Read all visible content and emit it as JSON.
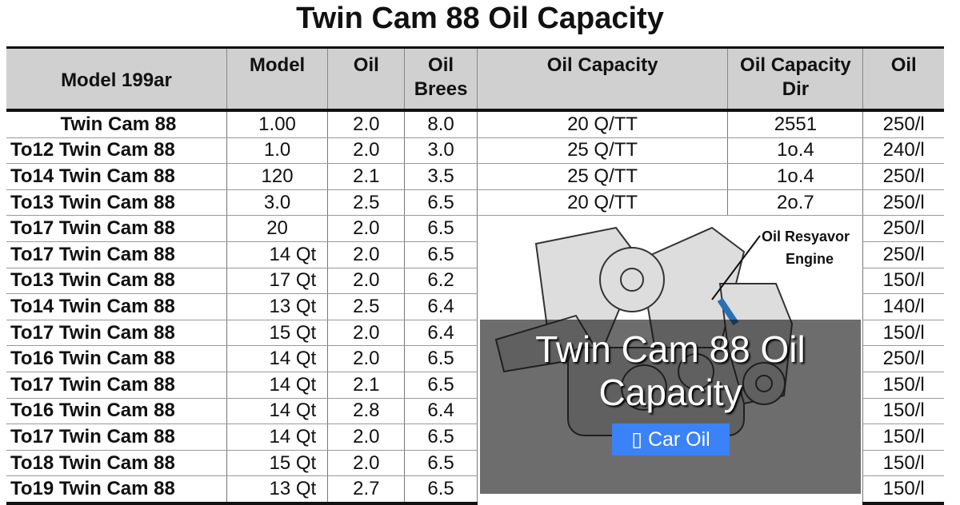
{
  "title": "Twin Cam 88 Oil Capacity",
  "headers": [
    "Model 199ar",
    "Model",
    "Oil",
    "Oil Brees",
    "Oil Capacity",
    "Oil Capacity Dir",
    "Oil"
  ],
  "rows": [
    [
      "Twin Cam 88",
      "1.00",
      "2.0",
      "8.0",
      "20 Q/TT",
      "2551",
      "250/l"
    ],
    [
      "To12  Twin Cam 88",
      "1.0",
      "2.0",
      "3.0",
      "25 Q/TT",
      "1o.4",
      "240/l"
    ],
    [
      "To14  Twin Cam 88",
      "120",
      "2.1",
      "3.5",
      "25 Q/TT",
      "1o.4",
      "250/l"
    ],
    [
      "To13  Twin Cam 88",
      "3.0",
      "2.5",
      "6.5",
      "20 Q/TT",
      "2o.7",
      "250/l"
    ],
    [
      "To17  Twin Cam 88",
      "20",
      "2.0",
      "6.5",
      "",
      "",
      "250/l"
    ],
    [
      "To17  Twin Cam 88",
      "14 Qt",
      "2.0",
      "6.5",
      "",
      "",
      "250/l"
    ],
    [
      "To13  Twin Cam 88",
      "17 Qt",
      "2.0",
      "6.2",
      "",
      "",
      "150/l"
    ],
    [
      "To14  Twin Cam 88",
      "13 Qt",
      "2.5",
      "6.4",
      "",
      "",
      "140/l"
    ],
    [
      "To17  Twin Cam 88",
      "15 Qt",
      "2.0",
      "6.4",
      "",
      "",
      "150/l"
    ],
    [
      "To16  Twin Cam 88",
      "14 Qt",
      "2.0",
      "6.5",
      "",
      "",
      "250/l"
    ],
    [
      "To17  Twin Cam 88",
      "14 Qt",
      "2.1",
      "6.5",
      "",
      "",
      "150/l"
    ],
    [
      "To16  Twin Cam 88",
      "14 Qt",
      "2.8",
      "6.4",
      "",
      "",
      "150/l"
    ],
    [
      "To17  Twin Cam 88",
      "14 Qt",
      "2.0",
      "6.5",
      "",
      "",
      "150/l"
    ],
    [
      "To18  Twin Cam 88",
      "15 Qt",
      "2.0",
      "6.5",
      "",
      "",
      "150/l"
    ],
    [
      "To19  Twin Cam 88",
      "13 Qt",
      "2.7",
      "6.5",
      "",
      "",
      "150/l"
    ]
  ],
  "engine_label": [
    "Oil Resyavor",
    "Engine"
  ],
  "overlay": {
    "title": "Twin Cam 88 Oil Capacity",
    "tag_icon": "folder-icon",
    "tag_glyph": "▯",
    "tag": "Car Oil",
    "tag_color": "#3b82f6"
  }
}
